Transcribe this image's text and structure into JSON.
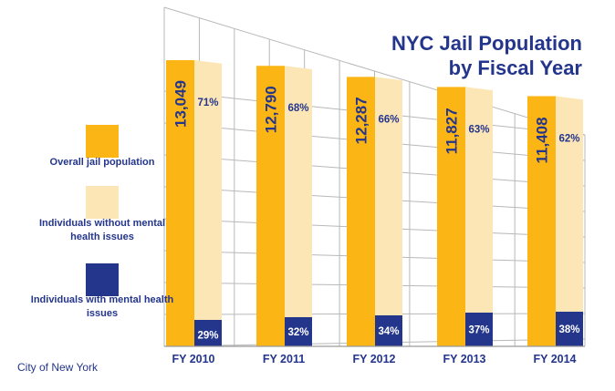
{
  "title": [
    "NYC Jail Population",
    "by Fiscal Year"
  ],
  "credit": "City of New York",
  "legend": [
    {
      "label": "Overall jail population",
      "color": "#fbb515"
    },
    {
      "label": "Individuals without mental health issues",
      "color": "#fde6b6"
    },
    {
      "label": "Individuals with mental health issues",
      "color": "#24358c"
    }
  ],
  "chart_data": {
    "type": "bar",
    "categories": [
      "FY 2010",
      "FY 2011",
      "FY 2012",
      "FY 2013",
      "FY 2014"
    ],
    "series": [
      {
        "name": "Overall jail population",
        "values": [
          13049,
          12790,
          12287,
          11827,
          11408
        ],
        "labels": [
          "13,049",
          "12,790",
          "12,287",
          "11,827",
          "11,408"
        ]
      },
      {
        "name": "Individuals without mental health issues",
        "values": [
          71,
          68,
          66,
          63,
          62
        ],
        "labels": [
          "71%",
          "68%",
          "66%",
          "63%",
          "62%"
        ]
      },
      {
        "name": "Individuals with mental health issues",
        "values": [
          29,
          32,
          34,
          37,
          38
        ],
        "labels": [
          "29%",
          "32%",
          "34%",
          "37%",
          "38%"
        ]
      }
    ],
    "grid": true,
    "legend_position": "left"
  }
}
